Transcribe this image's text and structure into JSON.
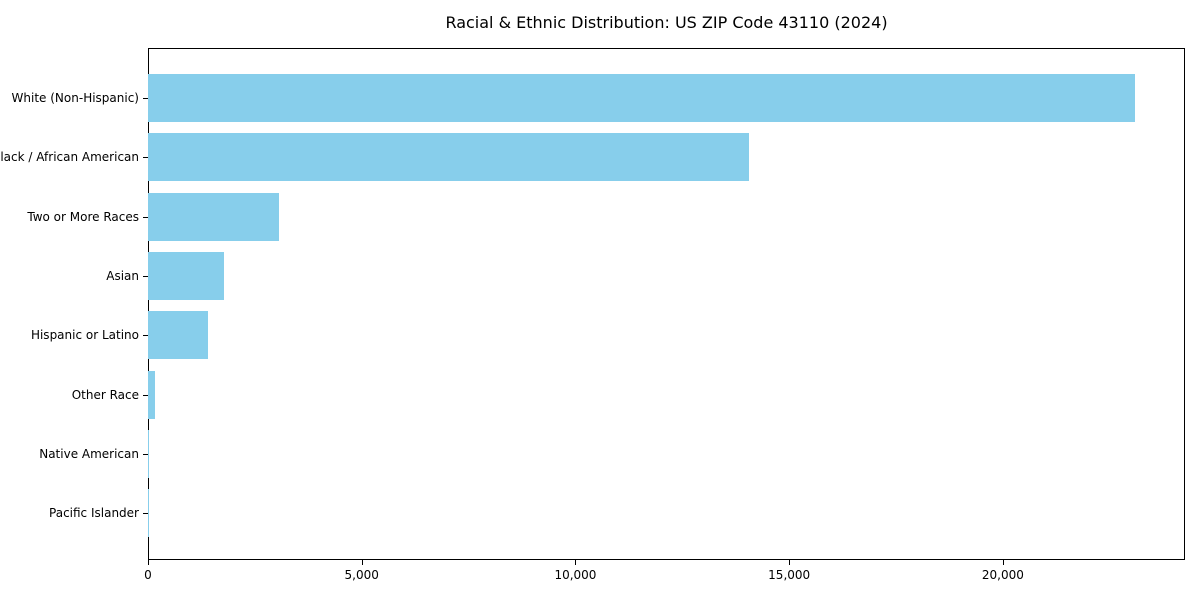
{
  "chart_data": {
    "type": "bar",
    "orientation": "horizontal",
    "title": "Racial & Ethnic Distribution: US ZIP Code 43110 (2024)",
    "categories": [
      "White (Non-Hispanic)",
      "Black / African American",
      "Two or More Races",
      "Asian",
      "Hispanic or Latino",
      "Other Race",
      "Native American",
      "Pacific Islander"
    ],
    "values": [
      23100,
      14050,
      3060,
      1780,
      1400,
      170,
      30,
      10
    ],
    "xlabel": "",
    "ylabel": "",
    "xlim": [
      0,
      24260
    ],
    "x_ticks": [
      {
        "value": 0,
        "label": "0"
      },
      {
        "value": 5000,
        "label": "5,000"
      },
      {
        "value": 10000,
        "label": "10,000"
      },
      {
        "value": 15000,
        "label": "15,000"
      },
      {
        "value": 20000,
        "label": "20,000"
      }
    ],
    "bar_color": "#87CEEB",
    "axis_color": "#000000",
    "text_color": "#000000",
    "grid": false,
    "legend_position": "none"
  }
}
